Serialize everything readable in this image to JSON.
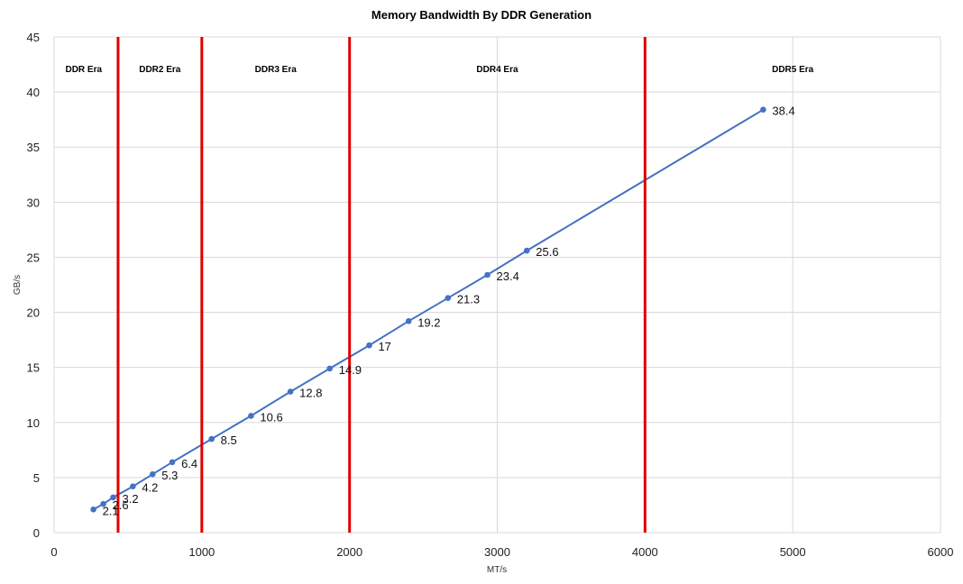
{
  "chart_data": {
    "type": "line",
    "title": "Memory Bandwidth By DDR Generation",
    "xlabel": "MT/s",
    "ylabel": "GB/s",
    "xlim": [
      0,
      6000
    ],
    "ylim": [
      0,
      45
    ],
    "xticks": [
      0,
      1000,
      2000,
      3000,
      4000,
      5000,
      6000
    ],
    "yticks": [
      0,
      5,
      10,
      15,
      20,
      25,
      30,
      35,
      40,
      45
    ],
    "grid": true,
    "legend": "none",
    "series": [
      {
        "color": "#4472c4",
        "x": [
          266,
          333,
          400,
          533,
          667,
          800,
          1066,
          1333,
          1600,
          1866,
          2133,
          2400,
          2666,
          2933,
          3200,
          4800
        ],
        "y": [
          2.1,
          2.6,
          3.2,
          4.2,
          5.3,
          6.4,
          8.5,
          10.6,
          12.8,
          14.9,
          17,
          19.2,
          21.3,
          23.4,
          25.6,
          38.4
        ],
        "labels": [
          "2.1",
          "2.6",
          "3.2",
          "4.2",
          "5.3",
          "6.4",
          "8.5",
          "10.6",
          "12.8",
          "14.9",
          "17",
          "19.2",
          "21.3",
          "23.4",
          "25.6",
          "38.4"
        ]
      }
    ],
    "dividers": {
      "color": "#e00000",
      "x": [
        433,
        1000,
        2000,
        4000
      ]
    },
    "eras": [
      {
        "label": "DDR Era",
        "x_center": 200
      },
      {
        "label": "DDR2 Era",
        "x_center": 716
      },
      {
        "label": "DDR3 Era",
        "x_center": 1500
      },
      {
        "label": "DDR4 Era",
        "x_center": 3000
      },
      {
        "label": "DDR5 Era",
        "x_center": 5000
      }
    ],
    "colors": {
      "grid": "#d9d9d9",
      "line": "#4472c4",
      "divider": "#e00000"
    }
  }
}
